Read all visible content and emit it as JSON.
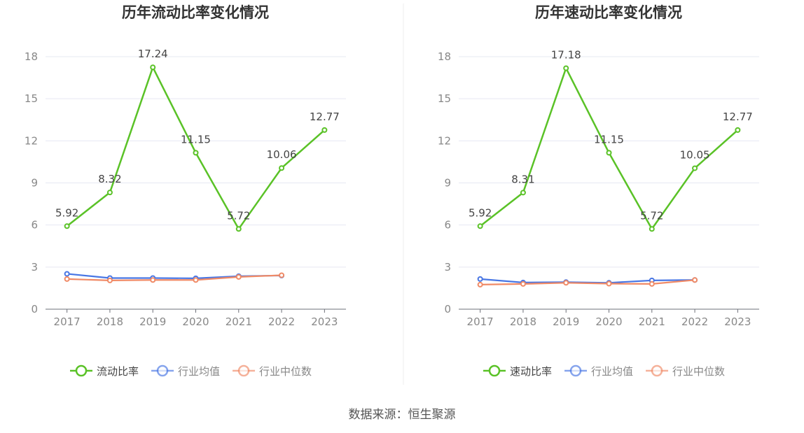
{
  "source_text": "数据来源：恒生聚源",
  "colors": {
    "primary": "#5ac227",
    "mean": "#4876e4",
    "median": "#f08a66",
    "grid": "#e6e8f2",
    "axis": "#6e7079",
    "legend_inactive_text": "#888888",
    "legend_active_text": "#444444"
  },
  "chart_data": [
    {
      "type": "line",
      "title": "历年流动比率变化情况",
      "categories": [
        "2017",
        "2018",
        "2019",
        "2020",
        "2021",
        "2022",
        "2023"
      ],
      "ylim": [
        0,
        18
      ],
      "yticks": [
        "0",
        "3",
        "6",
        "9",
        "12",
        "15",
        "18"
      ],
      "grid": true,
      "legend_position": "bottom",
      "series": [
        {
          "name": "流动比率",
          "key": "primary",
          "values": [
            5.92,
            8.32,
            17.24,
            11.15,
            5.72,
            10.06,
            12.77
          ],
          "labels": [
            "5.92",
            "8.32",
            "17.24",
            "11.15",
            "5.72",
            "10.06",
            "12.77"
          ]
        },
        {
          "name": "行业均值",
          "key": "mean",
          "values": [
            2.52,
            2.22,
            2.22,
            2.2,
            2.35,
            2.4,
            null
          ]
        },
        {
          "name": "行业中位数",
          "key": "median",
          "values": [
            2.15,
            2.05,
            2.08,
            2.08,
            2.3,
            2.42,
            null
          ]
        }
      ]
    },
    {
      "type": "line",
      "title": "历年速动比率变化情况",
      "categories": [
        "2017",
        "2018",
        "2019",
        "2020",
        "2021",
        "2022",
        "2023"
      ],
      "ylim": [
        0,
        18
      ],
      "yticks": [
        "0",
        "3",
        "6",
        "9",
        "12",
        "15",
        "18"
      ],
      "grid": true,
      "legend_position": "bottom",
      "series": [
        {
          "name": "速动比率",
          "key": "primary",
          "values": [
            5.92,
            8.31,
            17.18,
            11.15,
            5.72,
            10.05,
            12.77
          ],
          "labels": [
            "5.92",
            "8.31",
            "17.18",
            "11.15",
            "5.72",
            "10.05",
            "12.77"
          ]
        },
        {
          "name": "行业均值",
          "key": "mean",
          "values": [
            2.15,
            1.9,
            1.93,
            1.88,
            2.05,
            2.08,
            null
          ]
        },
        {
          "name": "行业中位数",
          "key": "median",
          "values": [
            1.75,
            1.8,
            1.88,
            1.82,
            1.8,
            2.08,
            null
          ]
        }
      ]
    }
  ]
}
